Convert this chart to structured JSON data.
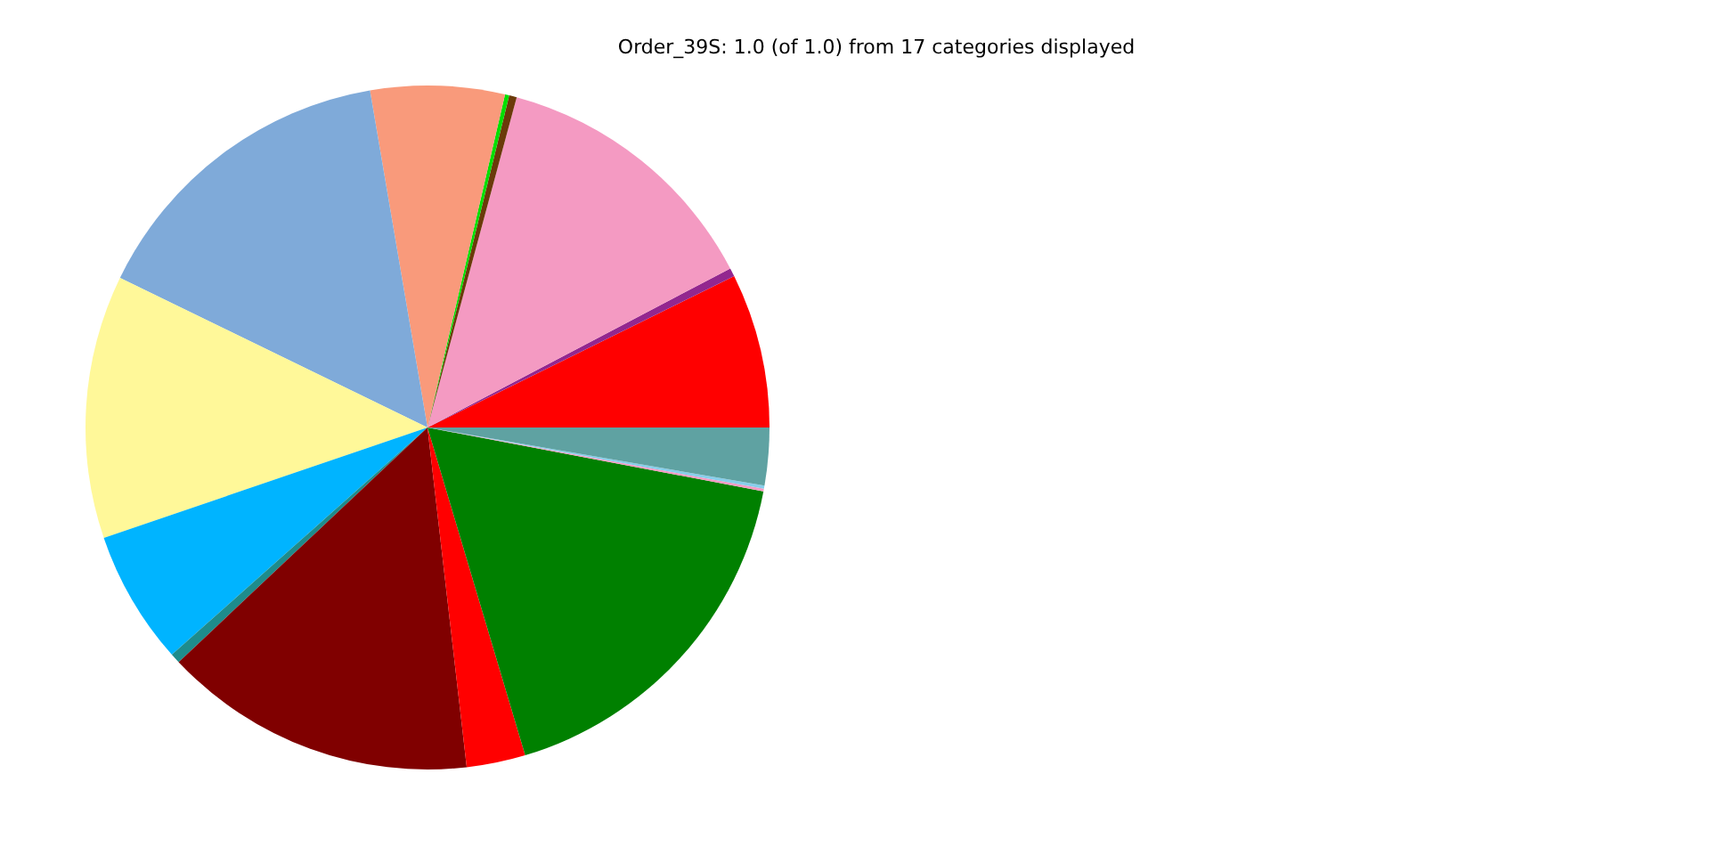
{
  "chart_data": {
    "type": "pie",
    "title": "Order_39S: 1.0 (of 1.0) from 17 categories displayed",
    "categories": [
      null,
      null,
      null,
      null,
      null,
      null,
      null,
      null,
      null,
      null,
      null,
      null,
      null,
      null,
      null,
      null
    ],
    "values": [
      7.3,
      0.4,
      13.1,
      0.36,
      0.2,
      6.33,
      15.1,
      12.44,
      6.33,
      0.47,
      14.8,
      2.78,
      17.4,
      0.12,
      0.15,
      2.72
    ],
    "colors": [
      "#ff0000",
      "#93278f",
      "#f49ac2",
      "#6b3a0a",
      "#00e000",
      "#f99a7b",
      "#7faad9",
      "#fff899",
      "#00b4ff",
      "#1e8c8c",
      "#800000",
      "#ff0000",
      "#008000",
      "#f49ac2",
      "#87ceeb",
      "#5fa2a2"
    ],
    "legend": false
  }
}
